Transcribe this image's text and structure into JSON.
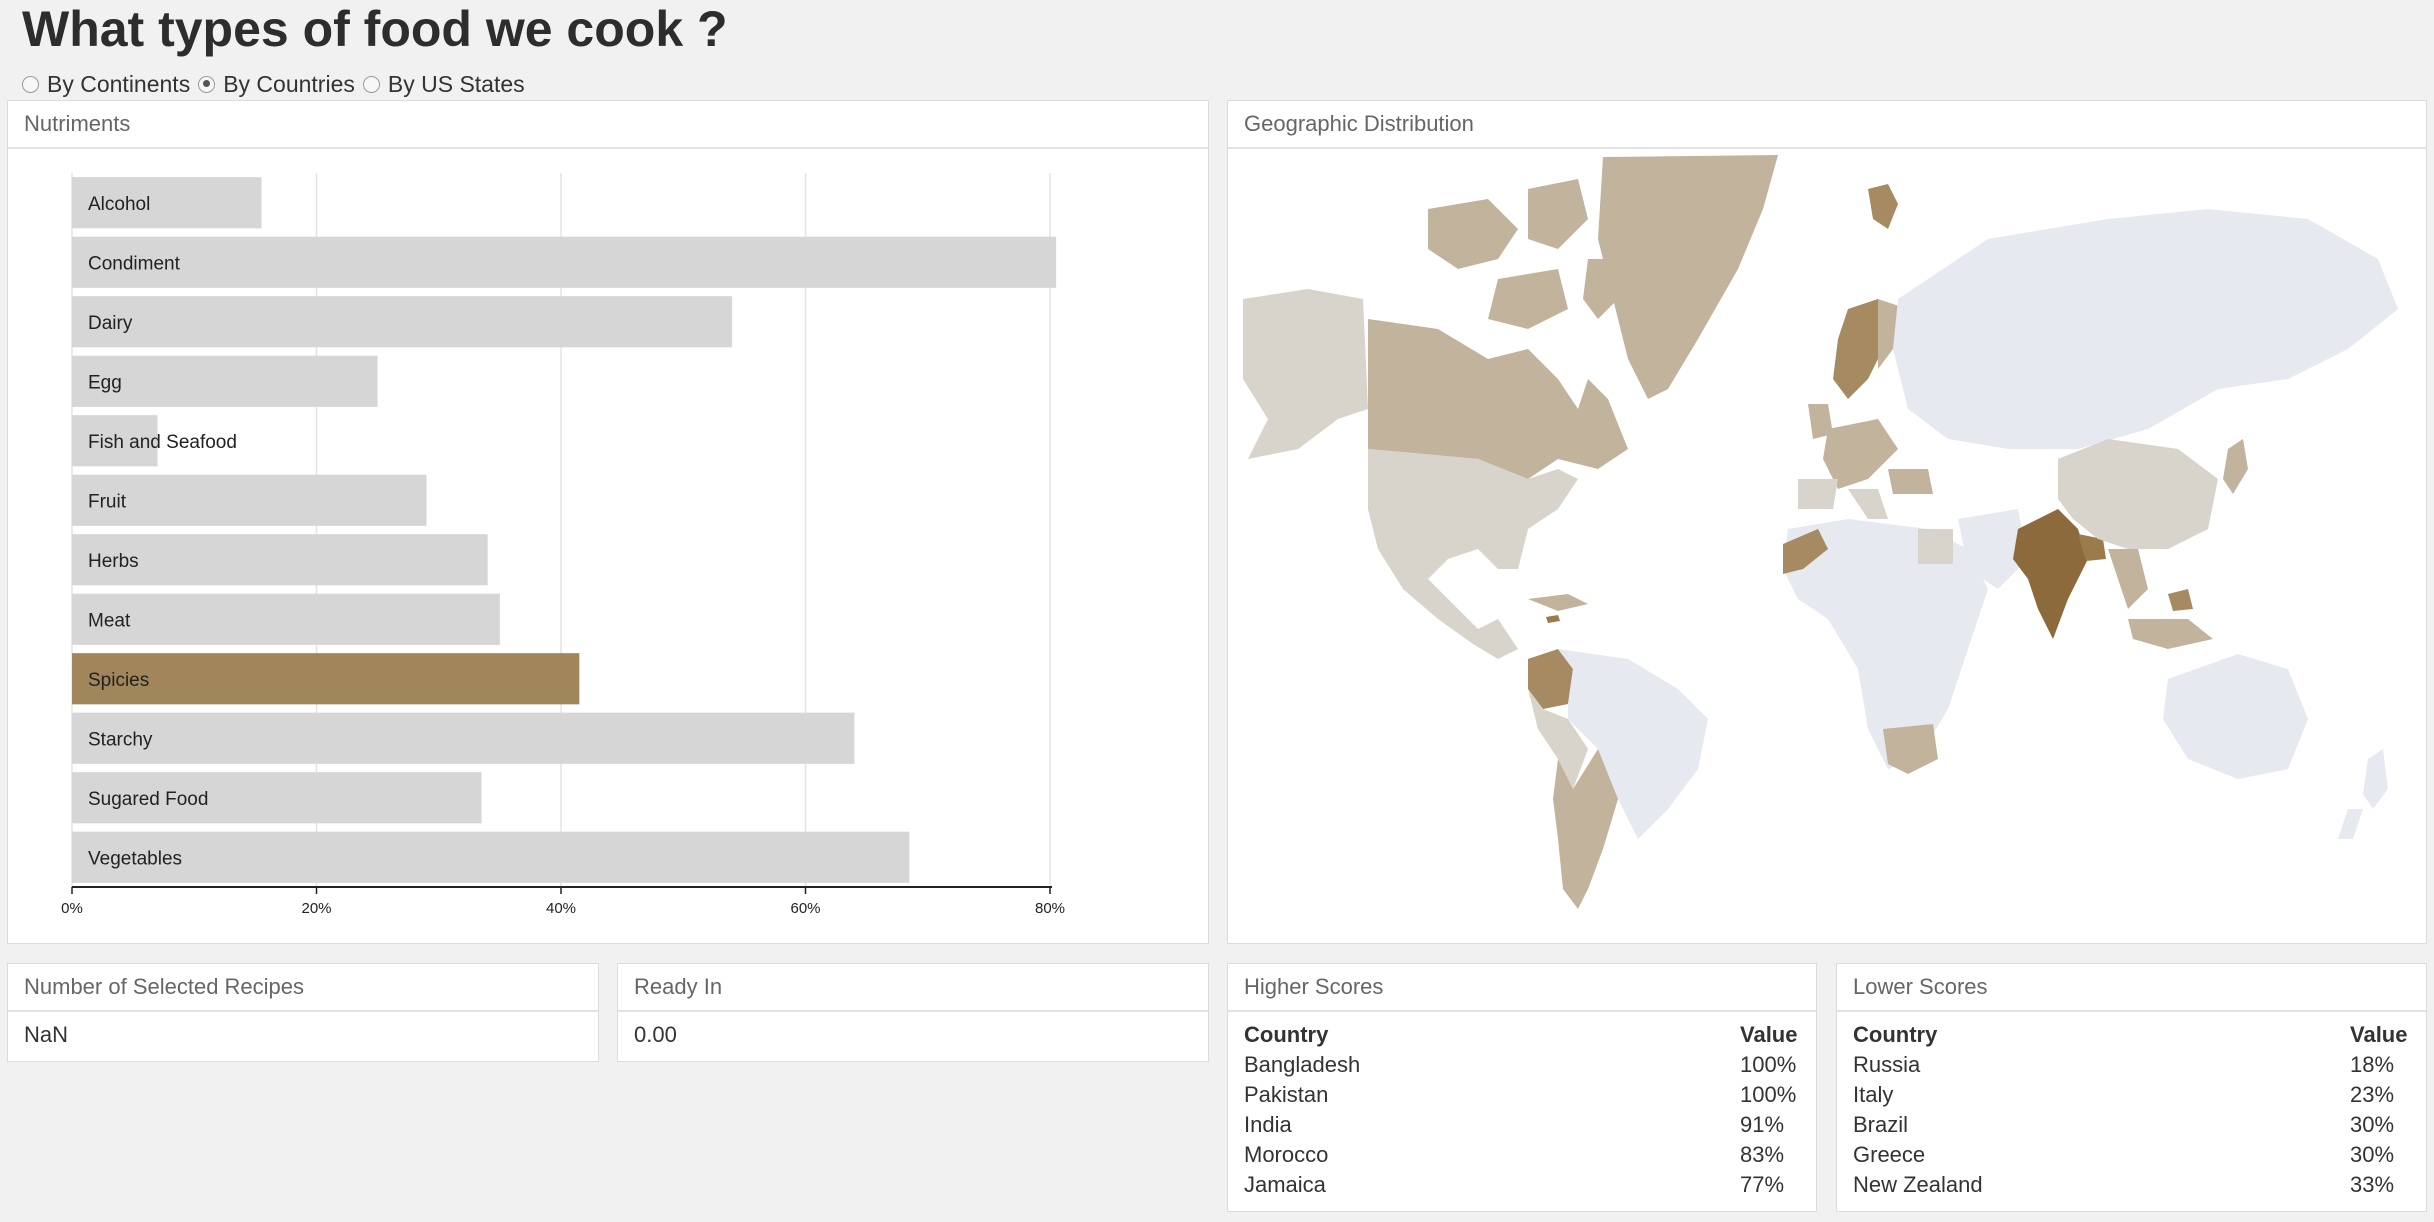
{
  "page": {
    "title": "What types of food we cook ?",
    "radio_options": [
      {
        "label": "By Continents",
        "checked": false
      },
      {
        "label": "By Countries",
        "checked": true
      },
      {
        "label": "By US States",
        "checked": false
      }
    ]
  },
  "colors": {
    "bar_default": "#d6d6d6",
    "bar_selected": "#a0865a",
    "map_ocean": "#ffffff",
    "map_empty": "#e7e9f0",
    "map_light": "#d8d3cb",
    "map_mid": "#c2b39c",
    "map_dark": "#9b7a4c",
    "map_darkest": "#8c6a3b"
  },
  "nutriments": {
    "header": "Nutriments",
    "chart_data": {
      "type": "bar",
      "orientation": "horizontal",
      "categories": [
        "Alcohol",
        "Condiment",
        "Dairy",
        "Egg",
        "Fish and Seafood",
        "Fruit",
        "Herbs",
        "Meat",
        "Spicies",
        "Starchy",
        "Sugared Food",
        "Vegetables"
      ],
      "values": [
        15.5,
        80.5,
        54,
        25,
        7,
        29,
        34,
        35,
        41.5,
        64,
        33.5,
        68.5
      ],
      "highlighted": "Spicies",
      "xlim": [
        0,
        80
      ],
      "x_ticks": [
        "0%",
        "20%",
        "40%",
        "60%",
        "80%"
      ],
      "grid": true,
      "title": "",
      "xlabel": "",
      "ylabel": ""
    }
  },
  "geo": {
    "header": "Geographic Distribution"
  },
  "recipes": {
    "header": "Number of Selected Recipes",
    "value": "NaN"
  },
  "ready": {
    "header": "Ready In",
    "value": "0.00"
  },
  "higher_scores": {
    "header": "Higher Scores",
    "col_country": "Country",
    "col_value": "Value",
    "rows": [
      {
        "country": "Bangladesh",
        "value": "100%"
      },
      {
        "country": "Pakistan",
        "value": "100%"
      },
      {
        "country": "India",
        "value": "91%"
      },
      {
        "country": "Morocco",
        "value": "83%"
      },
      {
        "country": "Jamaica",
        "value": "77%"
      }
    ]
  },
  "lower_scores": {
    "header": "Lower Scores",
    "col_country": "Country",
    "col_value": "Value",
    "rows": [
      {
        "country": "Russia",
        "value": "18%"
      },
      {
        "country": "Italy",
        "value": "23%"
      },
      {
        "country": "Brazil",
        "value": "30%"
      },
      {
        "country": "Greece",
        "value": "30%"
      },
      {
        "country": "New Zealand",
        "value": "33%"
      }
    ]
  }
}
